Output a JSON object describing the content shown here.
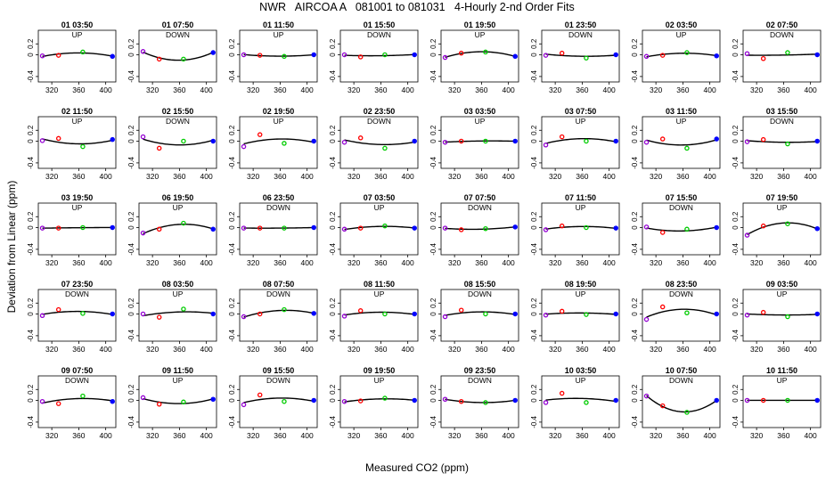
{
  "title": "NWR   AIRCOA A   081001 to 081031   4-Hourly 2-nd Order Fits",
  "xlabel": "Measured CO2 (ppm)",
  "ylabel": "Deviation from Linear (ppm)",
  "chart_data": {
    "type": "scatter",
    "layout": "small multiples 5 rows x 8 columns",
    "xlim": [
      300,
      415
    ],
    "ylim": [
      -0.5,
      0.45
    ],
    "x_ticks": [
      320,
      360,
      400
    ],
    "y_ticks": [
      -0.4,
      0.0,
      0.2
    ],
    "y_tick_labels": [
      "-0.4",
      "0",
      "0.2"
    ],
    "standard_x": [
      306,
      330,
      366,
      410
    ],
    "point_colors": [
      "#9400d3",
      "#ff0000",
      "#00cc00",
      "#0000ff"
    ],
    "curve_color": "#000000",
    "panels": [
      {
        "title": "01 03:50",
        "dir": "UP",
        "y": [
          -0.02,
          -0.01,
          0.05,
          -0.03
        ]
      },
      {
        "title": "01 07:50",
        "dir": "DOWN",
        "y": [
          0.06,
          -0.08,
          -0.08,
          0.04
        ]
      },
      {
        "title": "01 11:50",
        "dir": "UP",
        "y": [
          0.0,
          -0.01,
          -0.03,
          0.0
        ]
      },
      {
        "title": "01 15:50",
        "dir": "DOWN",
        "y": [
          0.0,
          -0.04,
          0.0,
          0.0
        ]
      },
      {
        "title": "01 19:50",
        "dir": "UP",
        "y": [
          -0.05,
          0.03,
          0.05,
          -0.03
        ]
      },
      {
        "title": "01 23:50",
        "dir": "DOWN",
        "y": [
          -0.01,
          0.03,
          -0.06,
          0.0
        ]
      },
      {
        "title": "02 03:50",
        "dir": "UP",
        "y": [
          -0.03,
          -0.01,
          0.04,
          -0.02
        ]
      },
      {
        "title": "02 07:50",
        "dir": "DOWN",
        "y": [
          0.02,
          -0.07,
          0.04,
          0.0
        ]
      },
      {
        "title": "02 11:50",
        "dir": "UP",
        "y": [
          0.01,
          0.05,
          -0.1,
          0.03
        ]
      },
      {
        "title": "02 15:50",
        "dir": "DOWN",
        "y": [
          0.08,
          -0.13,
          0.0,
          0.0
        ]
      },
      {
        "title": "02 19:50",
        "dir": "UP",
        "y": [
          -0.1,
          0.12,
          -0.04,
          0.0
        ]
      },
      {
        "title": "02 23:50",
        "dir": "DOWN",
        "y": [
          -0.02,
          0.06,
          -0.13,
          0.0
        ]
      },
      {
        "title": "03 03:50",
        "dir": "UP",
        "y": [
          -0.02,
          0.0,
          0.0,
          0.0
        ]
      },
      {
        "title": "03 07:50",
        "dir": "UP",
        "y": [
          -0.07,
          0.08,
          0.0,
          0.0
        ]
      },
      {
        "title": "03 11:50",
        "dir": "UP",
        "y": [
          -0.02,
          0.04,
          -0.13,
          0.04
        ]
      },
      {
        "title": "03 15:50",
        "dir": "DOWN",
        "y": [
          -0.01,
          0.03,
          -0.05,
          0.0
        ]
      },
      {
        "title": "03 19:50",
        "dir": "UP",
        "y": [
          -0.01,
          -0.01,
          0.0,
          0.0
        ]
      },
      {
        "title": "06 19:50",
        "dir": "UP",
        "y": [
          -0.1,
          -0.03,
          0.08,
          -0.03
        ]
      },
      {
        "title": "06 23:50",
        "dir": "DOWN",
        "y": [
          -0.01,
          -0.01,
          -0.01,
          0.0
        ]
      },
      {
        "title": "07 03:50",
        "dir": "UP",
        "y": [
          -0.03,
          -0.01,
          0.03,
          -0.01
        ]
      },
      {
        "title": "07 07:50",
        "dir": "DOWN",
        "y": [
          -0.01,
          -0.04,
          -0.02,
          0.01
        ]
      },
      {
        "title": "07 11:50",
        "dir": "UP",
        "y": [
          -0.04,
          0.03,
          0.0,
          -0.01
        ]
      },
      {
        "title": "07 15:50",
        "dir": "DOWN",
        "y": [
          0.01,
          -0.09,
          -0.03,
          0.0
        ]
      },
      {
        "title": "07 19:50",
        "dir": "UP",
        "y": [
          -0.14,
          0.03,
          0.07,
          -0.02
        ]
      },
      {
        "title": "07 23:50",
        "dir": "DOWN",
        "y": [
          -0.03,
          0.08,
          0.01,
          0.0
        ]
      },
      {
        "title": "08 03:50",
        "dir": "UP",
        "y": [
          0.0,
          -0.06,
          0.09,
          0.0
        ]
      },
      {
        "title": "08 07:50",
        "dir": "DOWN",
        "y": [
          -0.05,
          0.0,
          0.08,
          0.01
        ]
      },
      {
        "title": "08 11:50",
        "dir": "UP",
        "y": [
          -0.04,
          0.06,
          0.0,
          0.0
        ]
      },
      {
        "title": "08 15:50",
        "dir": "DOWN",
        "y": [
          -0.05,
          0.07,
          0.0,
          0.0
        ]
      },
      {
        "title": "08 19:50",
        "dir": "UP",
        "y": [
          -0.02,
          0.05,
          -0.01,
          0.0
        ]
      },
      {
        "title": "08 23:50",
        "dir": "DOWN",
        "y": [
          -0.1,
          0.13,
          0.02,
          0.0
        ]
      },
      {
        "title": "09 03:50",
        "dir": "UP",
        "y": [
          -0.02,
          0.03,
          -0.05,
          0.0
        ]
      },
      {
        "title": "09 07:50",
        "dir": "DOWN",
        "y": [
          -0.02,
          -0.06,
          0.08,
          -0.02
        ]
      },
      {
        "title": "09 11:50",
        "dir": "UP",
        "y": [
          0.05,
          -0.07,
          -0.03,
          0.02
        ]
      },
      {
        "title": "09 15:50",
        "dir": "DOWN",
        "y": [
          -0.08,
          0.1,
          -0.02,
          0.0
        ]
      },
      {
        "title": "09 19:50",
        "dir": "UP",
        "y": [
          -0.02,
          -0.01,
          0.04,
          0.0
        ]
      },
      {
        "title": "09 23:50",
        "dir": "DOWN",
        "y": [
          0.02,
          -0.02,
          -0.04,
          0.0
        ]
      },
      {
        "title": "10 03:50",
        "dir": "UP",
        "y": [
          -0.04,
          0.13,
          -0.04,
          0.0
        ]
      },
      {
        "title": "10 07:50",
        "dir": "DOWN",
        "y": [
          0.08,
          -0.1,
          -0.22,
          0.0
        ]
      },
      {
        "title": "10 11:50",
        "dir": "UP",
        "y": [
          0.0,
          0.0,
          0.0,
          0.0
        ]
      }
    ]
  }
}
